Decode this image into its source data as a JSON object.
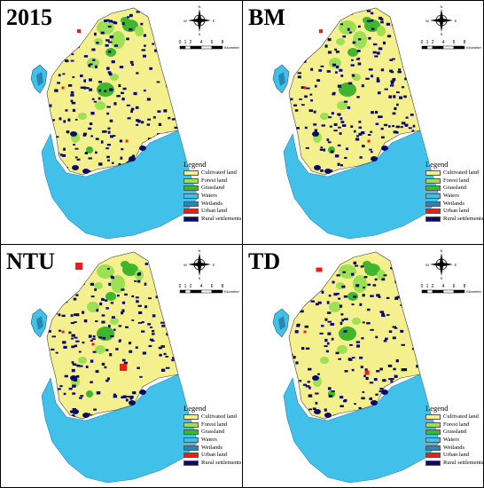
{
  "panels": [
    {
      "id": "2015",
      "title": "2015"
    },
    {
      "id": "bm",
      "title": "BM"
    },
    {
      "id": "ntu",
      "title": "NTU"
    },
    {
      "id": "td",
      "title": "TD"
    }
  ],
  "compass": {
    "north": "N",
    "south": "S",
    "west": "W",
    "east": "E"
  },
  "scale": {
    "ticks": [
      "0",
      "1",
      "2",
      "4",
      "6",
      "8"
    ],
    "unit": "Kilometer"
  },
  "legend": {
    "title": "Legend",
    "items": [
      {
        "label": "Cultivated land",
        "color": "#f5f08e"
      },
      {
        "label": "Forest land",
        "color": "#9de054"
      },
      {
        "label": "Grassland",
        "color": "#3fb62b"
      },
      {
        "label": "Waters",
        "color": "#41c0ea"
      },
      {
        "label": "Wetlands",
        "color": "#2a86b0"
      },
      {
        "label": "Urban land",
        "color": "#ef1c1c"
      },
      {
        "label": "Rural settlements",
        "color": "#0a0a6e"
      }
    ]
  }
}
